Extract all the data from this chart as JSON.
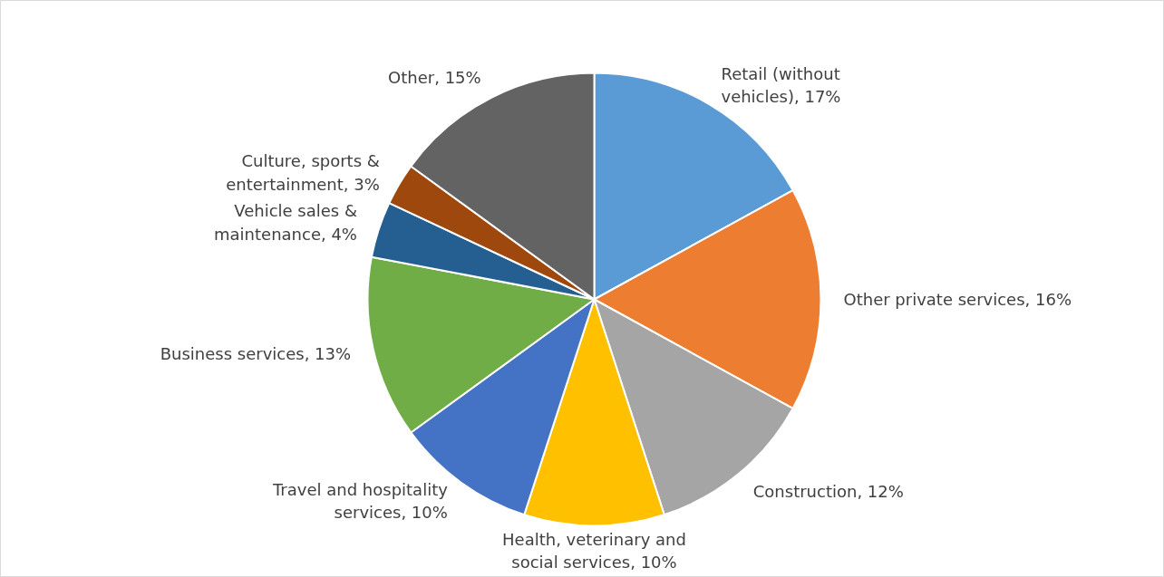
{
  "chart_data": {
    "type": "pie",
    "categories": [
      "Retail (without vehicles)",
      "Other private services",
      "Construction",
      "Health, veterinary and social services",
      "Travel and hospitality services",
      "Business services",
      "Vehicle sales & maintenance",
      "Culture, sports & entertainment",
      "Other"
    ],
    "values": [
      17,
      16,
      12,
      10,
      10,
      13,
      4,
      3,
      15
    ],
    "colors": [
      "#5b9bd5",
      "#ed7d31",
      "#a5a5a5",
      "#ffc000",
      "#4472c4",
      "#70ad47",
      "#255e91",
      "#9e480e",
      "#636363"
    ],
    "value_labels": [
      "17%",
      "16%",
      "12%",
      "10%",
      "10%",
      "13%",
      "4%",
      "3%",
      "15%"
    ]
  }
}
